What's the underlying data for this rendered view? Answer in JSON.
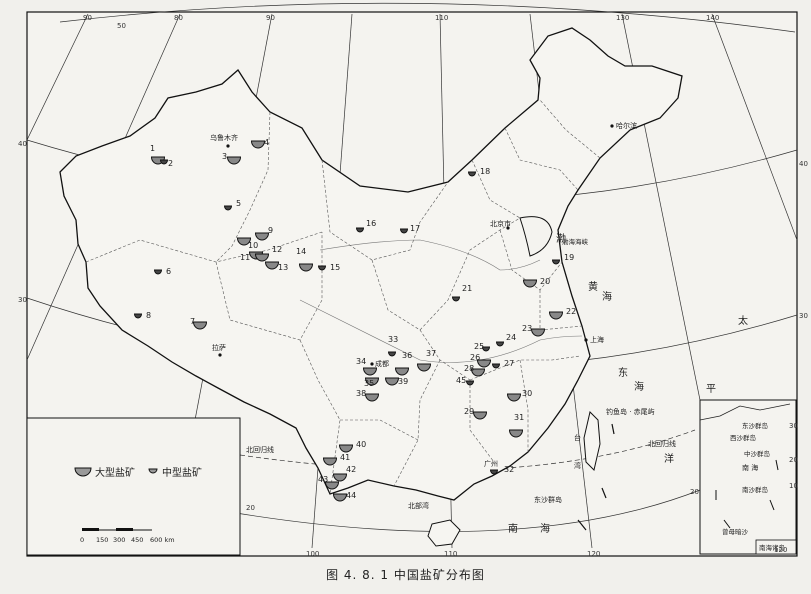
{
  "caption": "图 4. 8. 1   中国盐矿分布图",
  "legend": {
    "large": "大型盐矿",
    "medium": "中型盐矿"
  },
  "scale": {
    "labels": [
      "0",
      "150",
      "300",
      "450",
      "600 km"
    ]
  },
  "meridians": [
    "80",
    "90",
    "100",
    "110",
    "120",
    "130",
    "140"
  ],
  "meridians_top": [
    "90",
    "80",
    "90",
    "110",
    "130",
    "140"
  ],
  "parallels_left": [
    "40",
    "30"
  ],
  "parallels_right": [
    "40",
    "30",
    "20",
    "50"
  ],
  "grid_misc": {
    "tropic": "北回归线",
    "tropic_right": "北回归线",
    "twenty": "20",
    "small_30": "30",
    "small_20": "20",
    "small_10": "10",
    "small_120": "120",
    "bottom_100": "100",
    "bottom_110": "110",
    "bottom_120": "120"
  },
  "cities": {
    "urumqi": "乌鲁木齐",
    "lhasa": "拉萨",
    "chengdu": "成都",
    "beijing": "北京市",
    "harbin": "哈尔滨",
    "shanghai": "上海",
    "guangzhou": "广州",
    "beihai": "北部湾"
  },
  "seas": {
    "bohai": "渤",
    "bohai_strait": "渤海海峡",
    "huanghai1": "黄",
    "huanghai2": "海",
    "donghai1": "东",
    "donghai2": "海",
    "taiping1": "太",
    "taiping2": "平",
    "yang": "洋",
    "nanhai1": "南",
    "nanhai2": "海",
    "taiwan1": "台",
    "taiwan2": "湾",
    "diaoyu": "钓鱼岛 · 赤尾屿",
    "dongsha": "东沙群岛",
    "nanhai_isl": "南海诸岛",
    "inset_dongsha": "东沙群岛",
    "inset_xisha": "西沙群岛",
    "inset_zhongsha": "中沙群岛",
    "inset_nansha": "南沙群岛",
    "inset_zengmu": "曾母暗沙",
    "inset_nanhai": "南 海"
  },
  "sites": [
    {
      "id": "1",
      "type": "large"
    },
    {
      "id": "2",
      "type": "medium"
    },
    {
      "id": "3",
      "type": "large"
    },
    {
      "id": "4",
      "type": "large"
    },
    {
      "id": "5",
      "type": "medium"
    },
    {
      "id": "6",
      "type": "medium"
    },
    {
      "id": "7",
      "type": "large"
    },
    {
      "id": "8",
      "type": "medium"
    },
    {
      "id": "9",
      "type": "large"
    },
    {
      "id": "10",
      "type": "large"
    },
    {
      "id": "11",
      "type": "large"
    },
    {
      "id": "12",
      "type": "large"
    },
    {
      "id": "13",
      "type": "large"
    },
    {
      "id": "14",
      "type": "large"
    },
    {
      "id": "15",
      "type": "medium"
    },
    {
      "id": "16",
      "type": "medium"
    },
    {
      "id": "17",
      "type": "medium"
    },
    {
      "id": "18",
      "type": "medium"
    },
    {
      "id": "19",
      "type": "medium"
    },
    {
      "id": "20",
      "type": "large"
    },
    {
      "id": "21",
      "type": "medium"
    },
    {
      "id": "22",
      "type": "large"
    },
    {
      "id": "23",
      "type": "large"
    },
    {
      "id": "24",
      "type": "medium"
    },
    {
      "id": "25",
      "type": "medium"
    },
    {
      "id": "26",
      "type": "large"
    },
    {
      "id": "27",
      "type": "medium"
    },
    {
      "id": "28",
      "type": "large"
    },
    {
      "id": "29",
      "type": "large"
    },
    {
      "id": "30",
      "type": "large"
    },
    {
      "id": "31",
      "type": "large"
    },
    {
      "id": "32",
      "type": "medium"
    },
    {
      "id": "33",
      "type": "medium"
    },
    {
      "id": "34",
      "type": "large"
    },
    {
      "id": "35",
      "type": "large"
    },
    {
      "id": "36",
      "type": "large"
    },
    {
      "id": "37",
      "type": "large"
    },
    {
      "id": "38",
      "type": "large"
    },
    {
      "id": "39",
      "type": "large"
    },
    {
      "id": "40",
      "type": "large"
    },
    {
      "id": "41",
      "type": "large"
    },
    {
      "id": "42",
      "type": "large"
    },
    {
      "id": "43",
      "type": "large"
    },
    {
      "id": "44",
      "type": "large"
    },
    {
      "id": "45",
      "type": "medium"
    }
  ]
}
